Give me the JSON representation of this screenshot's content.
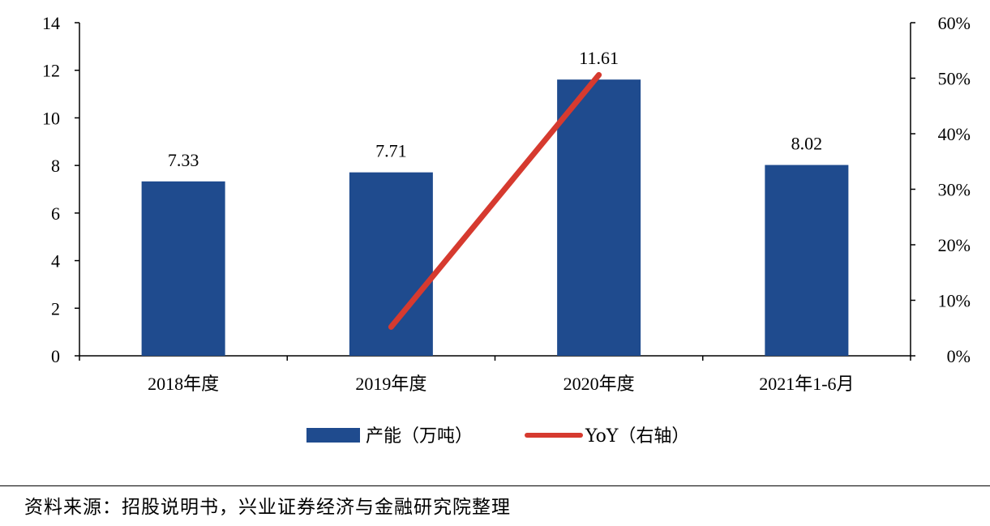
{
  "chart_data": {
    "type": "bar",
    "categories": [
      "2018年度",
      "2019年度",
      "2020年度",
      "2021年1-6月"
    ],
    "series": [
      {
        "name": "产能（万吨）",
        "type": "bar",
        "axis": "left",
        "values": [
          7.33,
          7.71,
          11.61,
          8.02
        ],
        "data_labels": [
          "7.33",
          "7.71",
          "11.61",
          "8.02"
        ]
      },
      {
        "name": "YoY（右轴）",
        "type": "line",
        "axis": "right",
        "values": [
          null,
          5.2,
          50.6,
          null
        ]
      }
    ],
    "y_left": {
      "min": 0,
      "max": 14,
      "ticks": [
        "0",
        "2",
        "4",
        "6",
        "8",
        "10",
        "12",
        "14"
      ]
    },
    "y_right": {
      "min": 0,
      "max": 60,
      "ticks": [
        "0%",
        "10%",
        "20%",
        "30%",
        "40%",
        "50%",
        "60%"
      ]
    },
    "grid": false,
    "legend_position": "bottom",
    "colors": {
      "bar": "#1f4b8e",
      "line": "#d63a2f"
    }
  },
  "source": "资料来源：招股说明书，兴业证券经济与金融研究院整理"
}
